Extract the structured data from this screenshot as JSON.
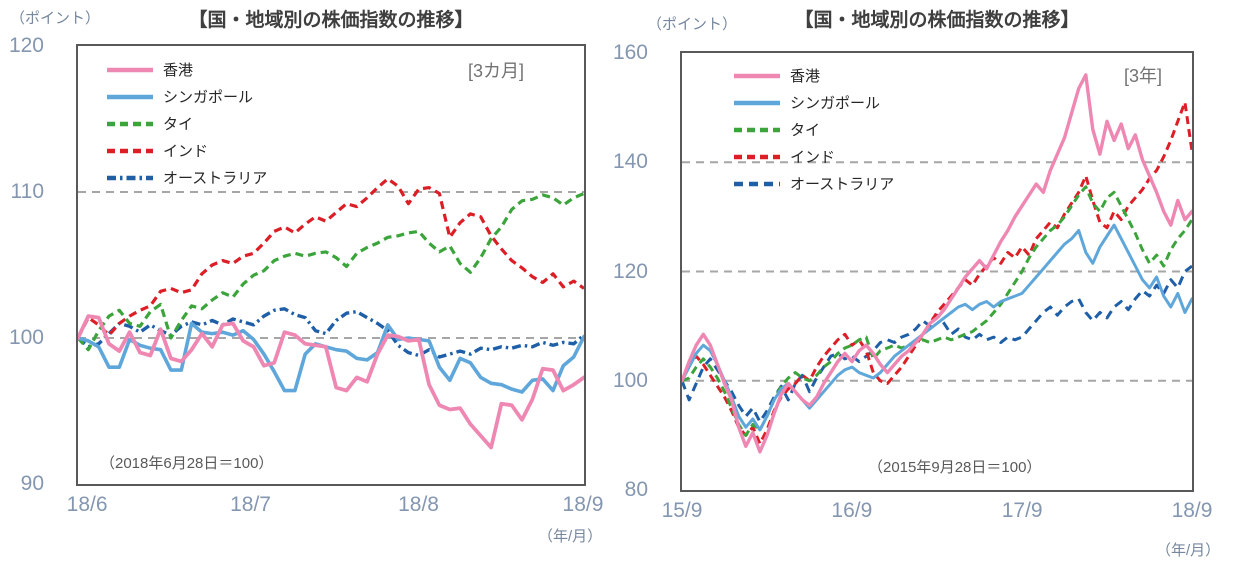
{
  "chart_data": [
    {
      "type": "line",
      "title": "【国・地域別の株価指数の推移】",
      "unit_label": "（ポイント）",
      "period_label": "[3カ月]",
      "note": "（2018年6月28日＝100）",
      "x_unit_label": "（年/月）",
      "legend_position": "top-left-inside",
      "grid": "horizontal-dashed",
      "y_axis": {
        "min": 90,
        "max": 120,
        "ticks": [
          120,
          110,
          100,
          90
        ],
        "gridlines": [
          110,
          100
        ]
      },
      "x_ticks": [
        {
          "label": "18/6",
          "f": 0.018
        },
        {
          "label": "18/7",
          "f": 0.341
        },
        {
          "label": "18/8",
          "f": 0.673
        },
        {
          "label": "18/9",
          "f": 0.998
        }
      ],
      "series": [
        {
          "name": "香港",
          "color": "#ef87b3",
          "style": "solid",
          "width": 3.8,
          "values": [
            100,
            101.5,
            101.4,
            99.6,
            99.1,
            100.4,
            99.0,
            98.8,
            100.6,
            98.6,
            98.4,
            99.2,
            100.3,
            99.4,
            100.9,
            101.0,
            99.8,
            99.4,
            98.1,
            98.3,
            100.4,
            100.2,
            99.6,
            99.5,
            99.4,
            96.6,
            96.4,
            97.3,
            97.0,
            98.9,
            100.2,
            100.1,
            99.8,
            99.9,
            96.8,
            95.4,
            95.1,
            95.2,
            94.1,
            93.3,
            92.5,
            95.5,
            95.4,
            94.4,
            95.8,
            97.9,
            97.8,
            96.4,
            96.8,
            97.3
          ]
        },
        {
          "name": "シンガポール",
          "color": "#5fa7da",
          "style": "solid",
          "width": 3.6,
          "values": [
            100,
            99.8,
            99.4,
            98.0,
            98.0,
            99.9,
            99.5,
            99.3,
            99.2,
            97.8,
            97.8,
            101.0,
            100.4,
            100.3,
            100.4,
            100.2,
            100.5,
            99.9,
            98.9,
            97.7,
            96.4,
            96.4,
            98.9,
            99.6,
            99.4,
            99.2,
            99.1,
            98.6,
            98.5,
            99.0,
            100.9,
            99.9,
            100.0,
            99.9,
            99.8,
            98.0,
            97.1,
            98.6,
            98.3,
            97.3,
            96.9,
            96.8,
            96.5,
            96.3,
            97.1,
            97.2,
            96.4,
            98.1,
            98.7,
            100.1
          ]
        },
        {
          "name": "タイ",
          "color": "#3ba43b",
          "style": "dashed",
          "width": 3.2,
          "values": [
            100,
            99.2,
            100.5,
            101.5,
            101.9,
            101.0,
            100.8,
            101.8,
            102.3,
            100.0,
            101.2,
            102.2,
            102.0,
            102.6,
            103.1,
            102.8,
            103.7,
            104.3,
            104.6,
            105.3,
            105.6,
            105.8,
            105.6,
            105.8,
            105.9,
            105.5,
            104.9,
            105.8,
            106.2,
            106.5,
            106.9,
            107.0,
            107.2,
            107.3,
            106.5,
            105.9,
            106.3,
            105.1,
            104.5,
            105.5,
            106.8,
            107.6,
            108.8,
            109.4,
            109.5,
            109.8,
            109.6,
            109.1,
            109.6,
            109.9
          ]
        },
        {
          "name": "インド",
          "color": "#dc1e26",
          "style": "dashed",
          "width": 3.2,
          "values": [
            100,
            101.4,
            100.9,
            100.2,
            101.0,
            101.5,
            101.9,
            102.2,
            103.2,
            103.4,
            103.1,
            103.3,
            104.4,
            105.0,
            105.3,
            105.1,
            105.6,
            105.8,
            106.5,
            107.3,
            107.6,
            107.2,
            107.8,
            108.3,
            108.0,
            108.6,
            109.2,
            109.0,
            109.6,
            110.3,
            110.9,
            110.4,
            109.2,
            110.2,
            110.3,
            109.9,
            106.9,
            107.9,
            108.5,
            108.3,
            107.0,
            106.1,
            105.3,
            104.8,
            104.2,
            103.8,
            104.4,
            103.5,
            103.9,
            103.4
          ]
        },
        {
          "name": "オーストラリア",
          "color": "#1f5fa8",
          "style": "dashdot",
          "width": 3.4,
          "values": [
            100,
            99.4,
            99.6,
            100.3,
            101.0,
            100.8,
            100.4,
            100.9,
            100.5,
            100.2,
            100.8,
            101.1,
            100.9,
            101.2,
            100.9,
            101.3,
            101.1,
            100.9,
            101.5,
            101.9,
            102.0,
            101.6,
            101.4,
            100.5,
            100.3,
            101.2,
            101.7,
            101.8,
            101.4,
            101.0,
            100.5,
            99.5,
            99.0,
            98.8,
            99.2,
            98.7,
            98.9,
            99.1,
            98.9,
            99.3,
            99.2,
            99.4,
            99.3,
            99.5,
            99.4,
            99.7,
            99.5,
            99.7,
            99.6,
            100.2
          ]
        }
      ]
    },
    {
      "type": "line",
      "title": "【国・地域別の株価指数の推移】",
      "unit_label": "（ポイント）",
      "period_label": "[3年]",
      "note": "（2015年9月28日＝100）",
      "x_unit_label": "（年/月）",
      "legend_position": "top-left-inside",
      "grid": "horizontal-dashed",
      "y_axis": {
        "min": 80,
        "max": 160,
        "ticks": [
          160,
          140,
          120,
          100,
          80
        ],
        "gridlines": [
          140,
          120,
          100
        ]
      },
      "x_ticks": [
        {
          "label": "15/9",
          "f": 0.0
        },
        {
          "label": "16/9",
          "f": 0.333
        },
        {
          "label": "17/9",
          "f": 0.667
        },
        {
          "label": "18/9",
          "f": 1.0
        }
      ],
      "series": [
        {
          "name": "香港",
          "color": "#ef87b3",
          "style": "solid",
          "width": 3.4,
          "values": [
            100,
            103.5,
            106.5,
            108.5,
            106.5,
            103,
            99.5,
            96.5,
            91.5,
            88,
            90.5,
            87,
            90,
            94,
            97.5,
            99.5,
            98,
            96.5,
            95.5,
            97,
            99.5,
            101.5,
            103.5,
            105,
            103.5,
            105.5,
            106.5,
            105,
            103,
            101.5,
            103,
            104.5,
            105.5,
            107,
            108.5,
            110.5,
            111.5,
            113,
            115,
            117,
            119,
            120.5,
            122,
            120.5,
            123,
            125.5,
            127.5,
            130,
            132,
            134,
            136,
            134.5,
            138.5,
            141.5,
            144.5,
            149,
            153.5,
            156,
            146,
            141.5,
            147.5,
            144,
            147,
            142.5,
            145,
            140.5,
            137.5,
            134.5,
            131,
            128.5,
            133,
            129.5,
            131
          ]
        },
        {
          "name": "シンガポール",
          "color": "#5fa7da",
          "style": "solid",
          "width": 3.0,
          "values": [
            100,
            102.5,
            105,
            106.5,
            105.5,
            103,
            100,
            97,
            93.5,
            91.5,
            93,
            91,
            93.5,
            96.5,
            98.5,
            99.5,
            98,
            96.5,
            95,
            96.5,
            98,
            99.5,
            101,
            102,
            102.5,
            101.5,
            101,
            100.5,
            101.5,
            103,
            104.5,
            105.5,
            106.5,
            107.5,
            108.5,
            109.5,
            110.5,
            111.5,
            112.5,
            113.5,
            114,
            113,
            114,
            114.5,
            113.5,
            114.5,
            115,
            115.5,
            116,
            117.5,
            119,
            120.5,
            122,
            123.5,
            125,
            126,
            127.5,
            123.5,
            121.5,
            124.5,
            126.5,
            128.5,
            126,
            123.5,
            121,
            118.5,
            117,
            119,
            115.5,
            113.5,
            116,
            112.5,
            115
          ]
        },
        {
          "name": "タイ",
          "color": "#3ba43b",
          "style": "dashed",
          "width": 3.0,
          "values": [
            100,
            100.5,
            102.5,
            104,
            102.5,
            100.5,
            98,
            95,
            92,
            90,
            92,
            91,
            93.5,
            96.5,
            99,
            100.5,
            101.5,
            100.5,
            100,
            101,
            102.5,
            103.5,
            105,
            106,
            106.5,
            107.5,
            108,
            104,
            105.5,
            106,
            106.5,
            106,
            106.5,
            107,
            107.5,
            107,
            107.5,
            108,
            107.5,
            108,
            108.5,
            109,
            110,
            111,
            112.5,
            114,
            116,
            118,
            120,
            122.5,
            124.5,
            126,
            127.5,
            128.5,
            130,
            132,
            134,
            135.5,
            132.5,
            131,
            133.5,
            134.5,
            132,
            129.5,
            127,
            124,
            121.5,
            123,
            121,
            124,
            126,
            127.5,
            129.5
          ]
        },
        {
          "name": "インド",
          "color": "#dc1e26",
          "style": "dashed",
          "width": 3.0,
          "values": [
            100,
            103,
            104.5,
            103,
            101,
            99,
            97,
            94.5,
            91.5,
            90,
            91.5,
            88.5,
            91,
            94.5,
            97,
            98.5,
            99.5,
            101,
            100,
            102.5,
            104.5,
            106,
            107.5,
            108.5,
            106.5,
            107.5,
            105.5,
            101.5,
            100,
            99.5,
            101,
            102.5,
            104.5,
            106.5,
            108.5,
            110.5,
            112.5,
            114,
            115.5,
            117,
            118.5,
            117.5,
            119.5,
            121,
            122.5,
            121.5,
            123.5,
            122.5,
            124.5,
            123,
            126,
            127.5,
            129,
            128,
            130.5,
            132.5,
            134.5,
            137.5,
            133,
            129,
            128,
            131,
            129.5,
            132,
            133.5,
            135,
            137,
            138.5,
            141,
            144,
            147.5,
            151,
            142
          ]
        },
        {
          "name": "オーストラリア",
          "color": "#1f5fa8",
          "style": "longdash",
          "width": 3.0,
          "values": [
            100,
            96.5,
            99.5,
            102.5,
            104,
            102,
            100,
            98,
            95.5,
            93.5,
            95,
            92.5,
            94.5,
            97,
            99,
            96.5,
            99.5,
            101,
            98,
            100.5,
            102.5,
            104.5,
            105,
            104,
            104.5,
            103.5,
            104.5,
            105.5,
            107,
            107.5,
            107,
            108,
            108.5,
            109.5,
            111,
            110,
            112,
            110.5,
            108.5,
            109.5,
            108,
            107.5,
            108.5,
            107.5,
            108,
            107,
            108,
            107.5,
            108,
            109.5,
            111,
            112.5,
            113.5,
            112,
            113.5,
            114.5,
            115,
            112.5,
            111,
            112.5,
            111.5,
            113.5,
            114.5,
            113,
            115,
            116.5,
            115.5,
            117.5,
            116,
            118.5,
            117,
            120,
            121
          ]
        }
      ]
    }
  ],
  "style": {
    "frame_color": "#595959",
    "gridline_color": "#a6a6a6",
    "tick_label_color": "#8496b0",
    "title_color": "#3f3f3f",
    "note_color": "#595959",
    "period_color": "#737373",
    "background": "#ffffff"
  }
}
